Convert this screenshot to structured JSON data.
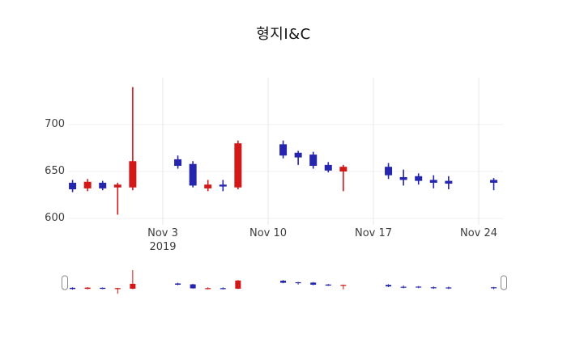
{
  "chart_data": {
    "type": "candlestick",
    "title": "형지I&C",
    "legend_position": "none",
    "grid": "on",
    "rangeslider": {
      "enabled": true
    },
    "colors": {
      "up": "#d11919",
      "down": "#2525ad",
      "grid_v": "#e7e7e7",
      "grid_h": "#f0f0f0",
      "handle_border": "#8a8a8a",
      "axis_text": "#3d3d3d"
    },
    "x_axis": {
      "anchor_date": "2019-11-03",
      "year_label": "2019",
      "ticks": [
        {
          "label": "Nov 3",
          "date": "2019-11-03"
        },
        {
          "label": "Nov 10",
          "date": "2019-11-10"
        },
        {
          "label": "Nov 17",
          "date": "2019-11-17"
        },
        {
          "label": "Nov 24",
          "date": "2019-11-24"
        }
      ]
    },
    "y_axis": {
      "range": [
        595,
        752
      ],
      "ticks": [
        {
          "label": "700",
          "value": 700
        },
        {
          "label": "650",
          "value": 650
        },
        {
          "label": "600",
          "value": 600
        }
      ]
    },
    "candles": [
      {
        "date": "2019-10-28",
        "open": 638,
        "high": 641,
        "low": 628,
        "close": 631
      },
      {
        "date": "2019-10-29",
        "open": 632,
        "high": 642,
        "low": 629,
        "close": 639
      },
      {
        "date": "2019-10-30",
        "open": 638,
        "high": 640,
        "low": 630,
        "close": 632
      },
      {
        "date": "2019-10-31",
        "open": 633,
        "high": 638,
        "low": 604,
        "close": 636
      },
      {
        "date": "2019-11-01",
        "open": 633,
        "high": 740,
        "low": 630,
        "close": 661
      },
      {
        "date": "2019-11-04",
        "open": 663,
        "high": 667,
        "low": 653,
        "close": 656
      },
      {
        "date": "2019-11-05",
        "open": 658,
        "high": 661,
        "low": 633,
        "close": 635
      },
      {
        "date": "2019-11-06",
        "open": 632,
        "high": 641,
        "low": 629,
        "close": 636
      },
      {
        "date": "2019-11-07",
        "open": 636,
        "high": 641,
        "low": 629,
        "close": 634
      },
      {
        "date": "2019-11-08",
        "open": 633,
        "high": 683,
        "low": 631,
        "close": 680
      },
      {
        "date": "2019-11-11",
        "open": 679,
        "high": 683,
        "low": 664,
        "close": 667
      },
      {
        "date": "2019-11-12",
        "open": 670,
        "high": 672,
        "low": 657,
        "close": 665
      },
      {
        "date": "2019-11-13",
        "open": 668,
        "high": 671,
        "low": 653,
        "close": 656
      },
      {
        "date": "2019-11-14",
        "open": 657,
        "high": 660,
        "low": 649,
        "close": 651
      },
      {
        "date": "2019-11-15",
        "open": 650,
        "high": 657,
        "low": 629,
        "close": 655
      },
      {
        "date": "2019-11-18",
        "open": 655,
        "high": 659,
        "low": 642,
        "close": 646
      },
      {
        "date": "2019-11-19",
        "open": 644,
        "high": 652,
        "low": 635,
        "close": 641
      },
      {
        "date": "2019-11-20",
        "open": 645,
        "high": 648,
        "low": 636,
        "close": 640
      },
      {
        "date": "2019-11-21",
        "open": 641,
        "high": 646,
        "low": 632,
        "close": 638
      },
      {
        "date": "2019-11-22",
        "open": 640,
        "high": 645,
        "low": 631,
        "close": 637
      },
      {
        "date": "2019-11-25",
        "open": 641,
        "high": 643,
        "low": 630,
        "close": 638
      }
    ]
  }
}
